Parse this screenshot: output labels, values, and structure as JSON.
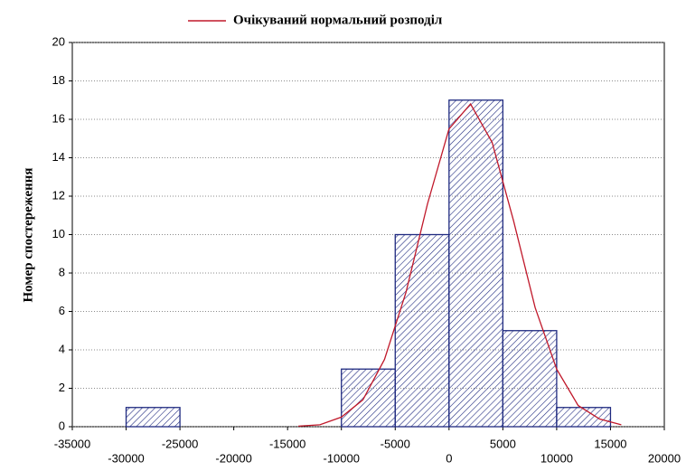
{
  "chart_data": {
    "type": "histogram",
    "ylabel": "Номер спостереження",
    "bins": [
      -30000,
      -25000,
      -20000,
      -15000,
      -10000,
      -5000,
      0,
      5000,
      10000,
      15000
    ],
    "counts": [
      1,
      0,
      0,
      0,
      3,
      10,
      17,
      5,
      1
    ],
    "color": "#1f2a80",
    "curve": {
      "name": "Очікуваний нормальний розподіл",
      "color": "#c0182a",
      "x": [
        -14000,
        -12000,
        -10000,
        -8000,
        -6000,
        -4000,
        -2000,
        0,
        2000,
        4000,
        6000,
        8000,
        10000,
        12000,
        14000,
        16000
      ],
      "values": [
        0.03,
        0.1,
        0.5,
        1.4,
        3.5,
        7.0,
        11.6,
        15.5,
        16.8,
        14.8,
        10.7,
        6.2,
        3.0,
        1.1,
        0.4,
        0.1
      ]
    },
    "xlim": [
      -35000,
      20000
    ],
    "xticks": [
      -35000,
      -30000,
      -25000,
      -20000,
      -15000,
      -10000,
      -5000,
      0,
      5000,
      10000,
      15000,
      20000
    ],
    "ylim": [
      0,
      20
    ],
    "yticks": [
      0,
      2,
      4,
      6,
      8,
      10,
      12,
      14,
      16,
      18,
      20
    ],
    "grid": true
  }
}
